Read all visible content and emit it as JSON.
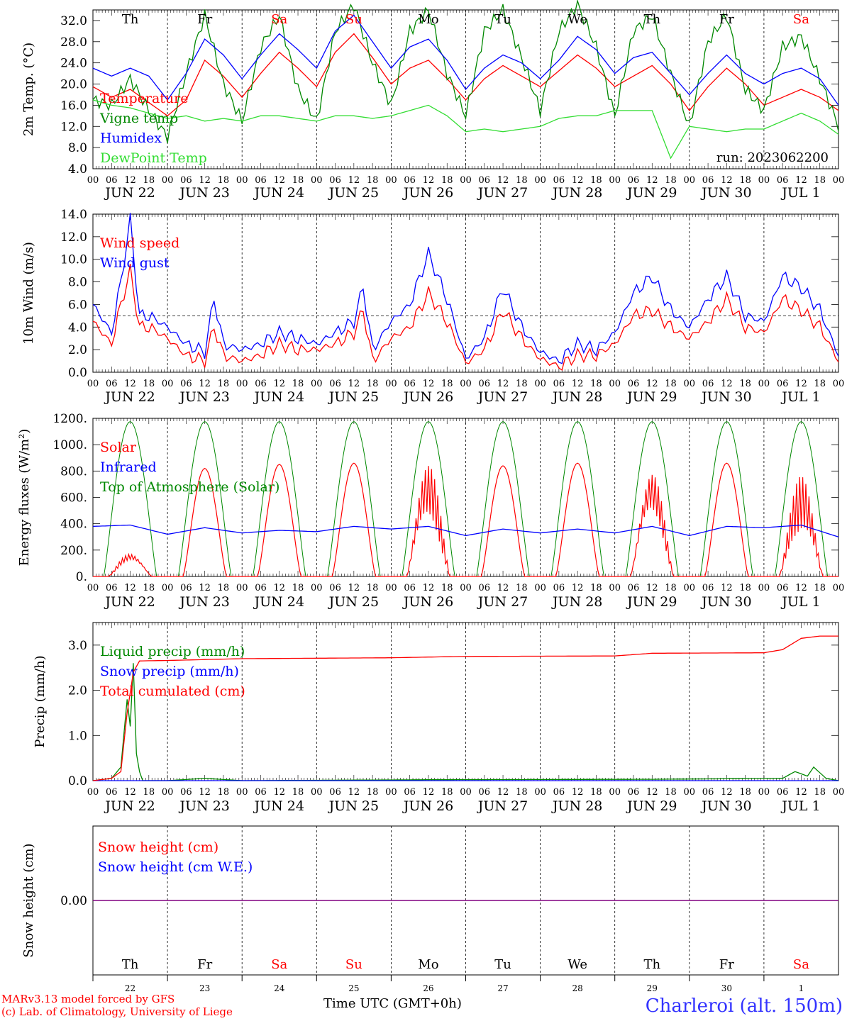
{
  "run_label": "run: 2023062200",
  "day_names": [
    {
      "name": "Th",
      "color": "#000000"
    },
    {
      "name": "Fr",
      "color": "#000000"
    },
    {
      "name": "Sa",
      "color": "#ff0000"
    },
    {
      "name": "Su",
      "color": "#ff0000"
    },
    {
      "name": "Mo",
      "color": "#000000"
    },
    {
      "name": "Tu",
      "color": "#000000"
    },
    {
      "name": "We",
      "color": "#000000"
    },
    {
      "name": "Th",
      "color": "#000000"
    },
    {
      "name": "Fr",
      "color": "#000000"
    },
    {
      "name": "Sa",
      "color": "#ff0000"
    }
  ],
  "date_labels": [
    "JUN 22",
    "JUN 23",
    "JUN 24",
    "JUN 25",
    "JUN 26",
    "JUN 27",
    "JUN 28",
    "JUN 29",
    "JUN 30",
    "JUL  1"
  ],
  "day_numbers": [
    "22",
    "23",
    "24",
    "25",
    "26",
    "27",
    "28",
    "29",
    "30",
    "1"
  ],
  "hour_labels": [
    "00",
    "06",
    "12",
    "18"
  ],
  "footer": {
    "model_line1": "MARv3.13 model forced by GFS",
    "model_line2": "(c) Lab. of Climatology, University of Liege",
    "time_axis": "Time UTC (GMT+0h)",
    "station": "Charleroi (alt. 150m)"
  },
  "chart_data": [
    {
      "type": "line",
      "ylabel": "2m Temp. (°C)",
      "ylim": [
        4,
        34
      ],
      "yticks": [
        "4.0",
        "8.0",
        "12.0",
        "16.0",
        "20.0",
        "24.0",
        "28.0",
        "32.0"
      ],
      "x_unit": "hours since Jun 22 00 UTC",
      "xlim": [
        0,
        240
      ],
      "series": [
        {
          "name": "Temperature",
          "color": "#ff0000",
          "x": [
            0,
            6,
            12,
            18,
            24,
            30,
            36,
            42,
            48,
            54,
            60,
            66,
            72,
            78,
            84,
            90,
            96,
            102,
            108,
            114,
            120,
            126,
            132,
            138,
            144,
            150,
            156,
            162,
            168,
            174,
            180,
            186,
            192,
            198,
            204,
            210,
            216,
            222,
            228,
            234,
            240
          ],
          "y": [
            19.5,
            17.5,
            19,
            16.5,
            14,
            17,
            24.5,
            21.5,
            17.5,
            22,
            26,
            23,
            19.5,
            26,
            29.5,
            25,
            20,
            23,
            24.5,
            21,
            17,
            21,
            23.5,
            21.5,
            19.5,
            22.5,
            25.5,
            23,
            19.5,
            21.5,
            23.5,
            20,
            15,
            19.5,
            23,
            20,
            16,
            17.5,
            19,
            17.5,
            15
          ]
        },
        {
          "name": "Vigne temp",
          "color": "#008800",
          "x": [
            0,
            6,
            12,
            18,
            24,
            30,
            36,
            42,
            48,
            54,
            60,
            66,
            72,
            78,
            84,
            90,
            96,
            102,
            108,
            114,
            120,
            126,
            132,
            138,
            144,
            150,
            156,
            162,
            168,
            174,
            180,
            186,
            192,
            198,
            204,
            210,
            216,
            222,
            228,
            234,
            240
          ],
          "y": [
            17,
            16,
            21,
            15,
            10,
            22,
            33,
            20,
            13,
            27,
            33,
            19,
            13,
            30,
            35,
            24,
            16,
            30,
            34,
            22,
            14,
            30,
            34,
            25,
            15,
            30,
            35,
            27,
            14,
            30,
            33,
            22,
            12,
            28,
            33,
            19,
            15,
            27,
            29,
            21,
            12
          ]
        },
        {
          "name": "Humidex",
          "color": "#0000ff",
          "x": [
            0,
            6,
            12,
            18,
            24,
            30,
            36,
            42,
            48,
            54,
            60,
            66,
            72,
            78,
            84,
            90,
            96,
            102,
            108,
            114,
            120,
            126,
            132,
            138,
            144,
            150,
            156,
            162,
            168,
            174,
            180,
            186,
            192,
            198,
            204,
            210,
            216,
            222,
            228,
            234,
            240
          ],
          "y": [
            23,
            21.5,
            23,
            21.5,
            17,
            22,
            28.5,
            25.5,
            21,
            25.5,
            29.5,
            26.5,
            23,
            30,
            33,
            28,
            23,
            27,
            28.5,
            24.5,
            19,
            23,
            25.5,
            24,
            21,
            24.5,
            29,
            26.5,
            22,
            25,
            26,
            22,
            18,
            22,
            25.5,
            22,
            20,
            22,
            23,
            21,
            16
          ]
        },
        {
          "name": "DewPoint Temp",
          "color": "#33dd33",
          "x": [
            0,
            6,
            12,
            18,
            24,
            30,
            36,
            42,
            48,
            54,
            60,
            66,
            72,
            78,
            84,
            90,
            96,
            102,
            108,
            114,
            120,
            126,
            132,
            138,
            144,
            150,
            156,
            162,
            168,
            174,
            180,
            186,
            192,
            198,
            204,
            210,
            216,
            222,
            228,
            234,
            240
          ],
          "y": [
            17,
            16,
            15.5,
            14.5,
            13.5,
            14,
            13,
            13.5,
            13,
            14,
            14,
            13.5,
            13,
            14,
            14,
            13.5,
            14,
            15,
            16,
            14,
            11,
            11.5,
            11,
            11.5,
            12,
            13.5,
            14,
            14,
            15,
            15,
            15,
            6,
            12,
            11.5,
            11,
            11.5,
            11.5,
            13,
            14.5,
            13,
            10.5
          ]
        }
      ]
    },
    {
      "type": "line",
      "ylabel": "10m Wind (m/s)",
      "ylim": [
        0,
        14
      ],
      "yticks": [
        "0.0",
        "2.0",
        "4.0",
        "6.0",
        "8.0",
        "10.0",
        "12.0",
        "14.0"
      ],
      "reference_line": 5,
      "series": [
        {
          "name": "Wind speed",
          "color": "#ff0000",
          "x": [
            0,
            6,
            9,
            12,
            15,
            18,
            24,
            30,
            36,
            39,
            42,
            48,
            54,
            60,
            66,
            72,
            78,
            84,
            87,
            90,
            96,
            102,
            108,
            114,
            120,
            126,
            132,
            138,
            144,
            150,
            156,
            162,
            168,
            174,
            180,
            186,
            192,
            198,
            204,
            210,
            216,
            222,
            228,
            234,
            240
          ],
          "y": [
            4.5,
            2.5,
            6,
            9,
            4,
            4,
            3,
            1.5,
            1,
            4,
            1.5,
            1,
            1.5,
            2.5,
            2,
            2,
            2.5,
            3.5,
            5.5,
            1,
            3,
            4,
            7,
            4.5,
            0.8,
            2,
            5.5,
            3,
            1.2,
            0.5,
            1.5,
            1.5,
            2.5,
            5,
            5.5,
            4,
            3,
            4.5,
            6.5,
            4,
            3.5,
            6.5,
            5.5,
            4,
            1
          ]
        },
        {
          "name": "Wind gust",
          "color": "#0000ff",
          "x": [
            0,
            6,
            9,
            12,
            15,
            18,
            24,
            30,
            36,
            39,
            42,
            48,
            54,
            60,
            66,
            72,
            78,
            84,
            87,
            90,
            96,
            102,
            108,
            114,
            120,
            126,
            132,
            138,
            144,
            150,
            156,
            162,
            168,
            174,
            180,
            186,
            192,
            198,
            204,
            210,
            216,
            222,
            228,
            234,
            240
          ],
          "y": [
            6,
            3.5,
            8,
            13.5,
            5,
            5,
            4,
            2.5,
            1.8,
            6.5,
            2.5,
            2,
            2.5,
            3.5,
            3,
            2.5,
            3.5,
            4.5,
            7.5,
            2,
            4.5,
            6,
            10.5,
            6.5,
            1.2,
            3,
            7.5,
            4,
            1.8,
            1,
            2.5,
            2,
            3.5,
            7,
            8.5,
            5.5,
            4,
            6.5,
            8.5,
            5,
            4.5,
            8.5,
            7.5,
            5.5,
            1.5
          ]
        }
      ]
    },
    {
      "type": "line",
      "ylabel": "Energy fluxes (W/m²)",
      "ylim": [
        0,
        1200
      ],
      "yticks": [
        "0.",
        "200.",
        "400.",
        "600.",
        "800.",
        "1000.",
        "1200."
      ],
      "series": [
        {
          "name": "Solar",
          "color": "#ff0000",
          "daily_peak": [
            180,
            820,
            850,
            860,
            850,
            840,
            860,
            800,
            860,
            760
          ]
        },
        {
          "name": "Infrared",
          "color": "#0000ff",
          "x": [
            0,
            12,
            24,
            36,
            48,
            60,
            72,
            84,
            96,
            108,
            120,
            132,
            144,
            156,
            168,
            180,
            192,
            204,
            216,
            228,
            240
          ],
          "y": [
            380,
            390,
            320,
            370,
            330,
            350,
            340,
            380,
            360,
            380,
            310,
            360,
            330,
            360,
            330,
            380,
            310,
            380,
            370,
            390,
            300
          ]
        },
        {
          "name": "Top of Atmosphere (Solar)",
          "color": "#008800",
          "daily_peak": [
            1175,
            1175,
            1175,
            1175,
            1175,
            1175,
            1175,
            1175,
            1175,
            1175
          ]
        }
      ]
    },
    {
      "type": "line",
      "ylabel": "Precip (mm/h)",
      "ylim": [
        0,
        3.5
      ],
      "yticks": [
        "0.0",
        "1.0",
        "2.0",
        "3.0"
      ],
      "series": [
        {
          "name": "Liquid precip (mm/h)",
          "color": "#008800",
          "x": [
            0,
            6,
            9,
            11,
            12,
            13,
            14,
            15,
            16,
            24,
            36,
            48,
            108,
            180,
            222,
            226,
            230,
            232,
            236,
            240
          ],
          "y": [
            0,
            0.05,
            0.3,
            1.8,
            1.2,
            2.6,
            0.6,
            0.2,
            0,
            0,
            0.05,
            0,
            0.02,
            0.03,
            0.05,
            0.2,
            0.1,
            0.3,
            0.05,
            0
          ]
        },
        {
          "name": "Snow precip (mm/h)",
          "color": "#0000ff",
          "x": [
            0,
            240
          ],
          "y": [
            0,
            0
          ]
        },
        {
          "name": "Total cumulated (cm)",
          "color": "#ff0000",
          "x": [
            0,
            6,
            9,
            11,
            13,
            15,
            24,
            36,
            48,
            96,
            120,
            168,
            180,
            216,
            222,
            228,
            234,
            240
          ],
          "y": [
            0,
            0.05,
            0.2,
            1.5,
            2.4,
            2.65,
            2.66,
            2.68,
            2.7,
            2.72,
            2.75,
            2.76,
            2.82,
            2.83,
            2.9,
            3.15,
            3.2,
            3.2
          ]
        }
      ]
    },
    {
      "type": "line",
      "ylabel": "Snow height (cm)",
      "ytick": "0.00",
      "series": [
        {
          "name": "Snow height (cm)",
          "color": "#ff0000",
          "x": [
            0,
            240
          ],
          "y": [
            0,
            0
          ]
        },
        {
          "name": "Snow height (cm W.E.)",
          "color": "#0000ff",
          "x": [
            0,
            240
          ],
          "y": [
            0,
            0
          ]
        }
      ]
    }
  ]
}
